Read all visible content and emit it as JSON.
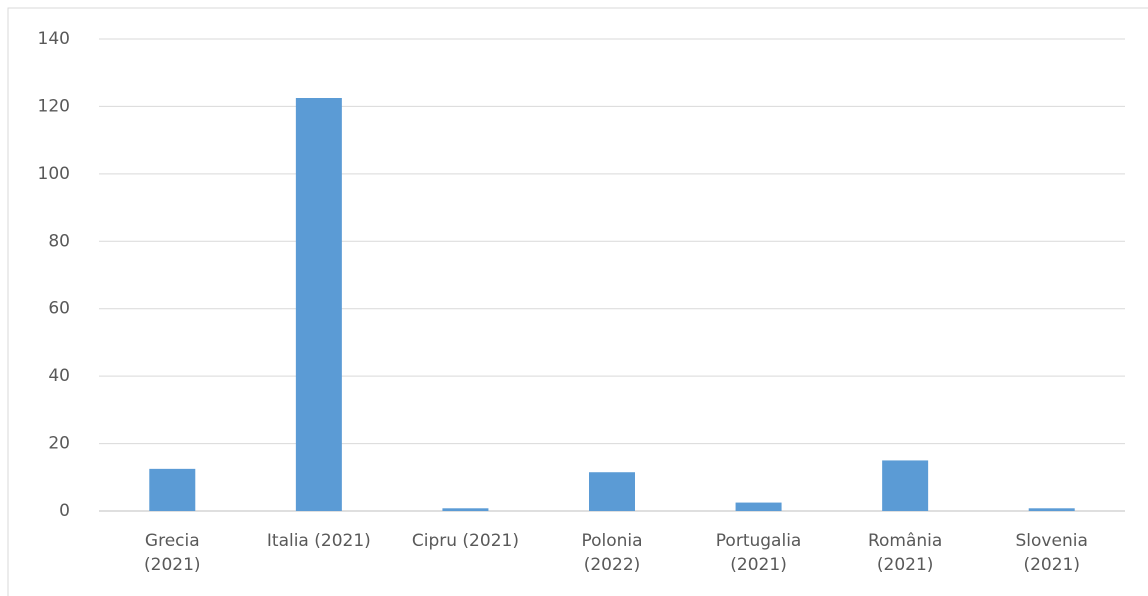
{
  "chart_data": {
    "type": "bar",
    "categories": [
      "Grecia (2021)",
      "Italia (2021)",
      "Cipru (2021)",
      "Polonia (2022)",
      "Portugalia (2021)",
      "România (2021)",
      "Slovenia (2021)"
    ],
    "values": [
      12.5,
      122.5,
      0.8,
      11.5,
      2.5,
      15,
      0.8
    ],
    "color": "#5b9bd5",
    "ylim": [
      0,
      140
    ],
    "yticks": [
      0,
      20,
      40,
      60,
      80,
      100,
      120,
      140
    ],
    "grid": true
  }
}
